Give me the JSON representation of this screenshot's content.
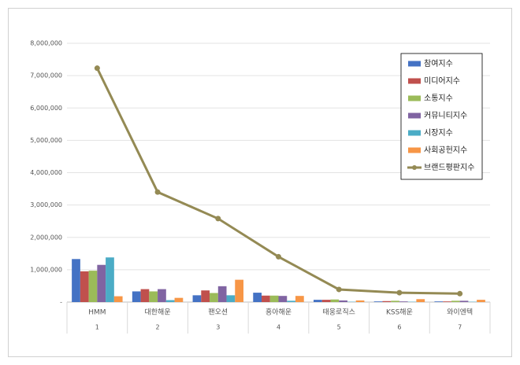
{
  "chart_data": {
    "type": "bar",
    "categories": [
      "HMM",
      "대한해운",
      "팬오션",
      "흥아해운",
      "태웅로직스",
      "KSS해운",
      "와이엔텍"
    ],
    "category_numbers": [
      "1",
      "2",
      "3",
      "4",
      "5",
      "6",
      "7"
    ],
    "series": [
      {
        "name": "참여지수",
        "color": "#4472c4",
        "values": [
          1330000,
          330000,
          210000,
          290000,
          70000,
          20000,
          20000
        ]
      },
      {
        "name": "미디어지수",
        "color": "#c0504d",
        "values": [
          950000,
          400000,
          360000,
          200000,
          70000,
          30000,
          20000
        ]
      },
      {
        "name": "소통지수",
        "color": "#9bbb59",
        "values": [
          970000,
          330000,
          280000,
          200000,
          80000,
          40000,
          40000
        ]
      },
      {
        "name": "커뮤니티지수",
        "color": "#8064a2",
        "values": [
          1150000,
          400000,
          490000,
          190000,
          50000,
          20000,
          40000
        ]
      },
      {
        "name": "시장지수",
        "color": "#4bacc6",
        "values": [
          1380000,
          60000,
          210000,
          40000,
          10000,
          10000,
          10000
        ]
      },
      {
        "name": "사회공헌지수",
        "color": "#f79646",
        "values": [
          180000,
          130000,
          690000,
          190000,
          50000,
          90000,
          70000
        ]
      },
      {
        "name": "브랜드평판지수",
        "color": "#948a54",
        "type": "line",
        "values": [
          7230000,
          3400000,
          2580000,
          1400000,
          390000,
          290000,
          260000
        ]
      }
    ],
    "ylim": [
      0,
      8000000
    ],
    "yticks": [
      {
        "value": 0,
        "label": "-"
      },
      {
        "value": 1000000,
        "label": "1,000,000"
      },
      {
        "value": 2000000,
        "label": "2,000,000"
      },
      {
        "value": 3000000,
        "label": "3,000,000"
      },
      {
        "value": 4000000,
        "label": "4,000,000"
      },
      {
        "value": 5000000,
        "label": "5,000,000"
      },
      {
        "value": 6000000,
        "label": "6,000,000"
      },
      {
        "value": 7000000,
        "label": "7,000,000"
      },
      {
        "value": 8000000,
        "label": "8,000,000"
      }
    ],
    "grid": true,
    "legend": "top-right"
  }
}
